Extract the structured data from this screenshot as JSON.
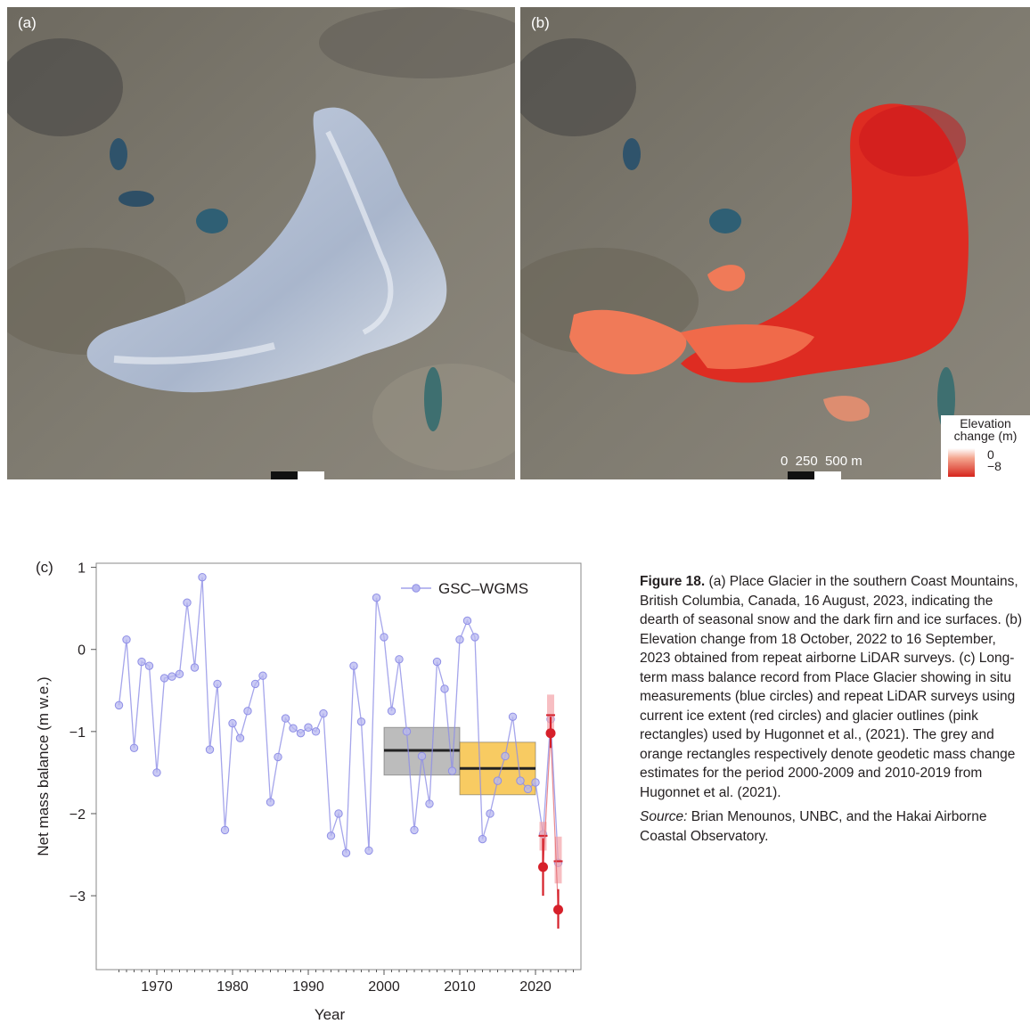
{
  "panels": {
    "a": {
      "label": "(a)"
    },
    "b": {
      "label": "(b)",
      "scale_text": "0  250  500 m",
      "legend_title_line1": "Elevation",
      "legend_title_line2": "change (m)",
      "legend_max": "0",
      "legend_min": "−8",
      "legend_colors": [
        "#ffffff",
        "#d6251d"
      ]
    }
  },
  "chart_data": {
    "type": "line",
    "panel_label": "(c)",
    "xlabel": "Year",
    "ylabel": "Net mass balance (m w.e.)",
    "xlim": [
      1962,
      2026
    ],
    "ylim": [
      -3.9,
      1.05
    ],
    "xticks": [
      1970,
      1980,
      1990,
      2000,
      2010,
      2020
    ],
    "yticks": [
      1,
      0,
      -1,
      -2,
      -3
    ],
    "ytick_labels": [
      "1",
      "0",
      "−1",
      "−2",
      "−3"
    ],
    "legend": {
      "label": "GSC–WGMS",
      "position": "top-right"
    },
    "series": [
      {
        "name": "GSC–WGMS",
        "color": "#8f8fe6",
        "x": [
          1965,
          1966,
          1967,
          1968,
          1969,
          1970,
          1971,
          1972,
          1973,
          1974,
          1975,
          1976,
          1977,
          1978,
          1979,
          1980,
          1981,
          1982,
          1983,
          1984,
          1985,
          1986,
          1987,
          1988,
          1989,
          1990,
          1991,
          1992,
          1993,
          1994,
          1995,
          1996,
          1997,
          1998,
          1999,
          2000,
          2001,
          2002,
          2003,
          2004,
          2005,
          2006,
          2007,
          2008,
          2009,
          2010,
          2011,
          2012,
          2013,
          2014,
          2015,
          2016,
          2017,
          2018,
          2019,
          2020,
          2021,
          2022,
          2023
        ],
        "y": [
          -0.68,
          0.12,
          -1.2,
          -0.15,
          -0.2,
          -1.5,
          -0.35,
          -0.33,
          -0.3,
          0.57,
          -0.22,
          0.88,
          -1.22,
          -0.42,
          -2.2,
          -0.9,
          -1.08,
          -0.75,
          -0.42,
          -0.32,
          -1.86,
          -1.31,
          -0.84,
          -0.96,
          -1.02,
          -0.95,
          -1.0,
          -0.78,
          -2.27,
          -2.0,
          -2.48,
          -0.2,
          -0.88,
          -2.45,
          0.63,
          0.15,
          -0.75,
          -0.12,
          -1.0,
          -2.2,
          -1.3,
          -1.88,
          -0.15,
          -0.48,
          -1.48,
          0.12,
          0.35,
          0.15,
          -2.31,
          -2.0,
          -1.6,
          -1.3,
          -0.82,
          -1.6,
          -1.7,
          -1.62,
          -2.25,
          -0.85,
          -2.6
        ]
      },
      {
        "name": "LiDAR",
        "color": "#d6202a",
        "points": [
          {
            "x": 2021,
            "y": -2.65,
            "lo": -3.0,
            "hi": -2.3
          },
          {
            "x": 2022,
            "y": -1.02,
            "lo": -1.2,
            "hi": -0.82
          },
          {
            "x": 2023,
            "y": -3.17,
            "lo": -3.4,
            "hi": -2.92
          }
        ]
      }
    ],
    "outline_points": [
      {
        "x": 2021,
        "y": -2.27,
        "lo": -2.45,
        "hi": -2.1
      },
      {
        "x": 2022,
        "y": -0.8,
        "lo": -1.0,
        "hi": -0.55
      },
      {
        "x": 2023,
        "y": -2.58,
        "lo": -2.85,
        "hi": -2.28
      }
    ],
    "geodetic_rectangles": [
      {
        "period": [
          2000,
          2009
        ],
        "mean": -1.23,
        "lo": -1.53,
        "hi": -0.95,
        "color": "#a6a6a6"
      },
      {
        "period": [
          2010,
          2019
        ],
        "mean": -1.45,
        "lo": -1.77,
        "hi": -1.13,
        "color": "#f6b92e"
      }
    ]
  },
  "caption": {
    "fig_label": "Figure 18.",
    "text": "(a) Place Glacier in the southern Coast Mountains, British Columbia, Canada, 16 August, 2023, indicating the dearth of seasonal snow and the dark firn and ice surfaces. (b) Elevation change from 18 October, 2022 to 16 September, 2023 obtained from repeat airborne LiDAR surveys. (c) Long-term mass balance record from Place Glacier showing in situ measurements (blue circles) and repeat LiDAR surveys using current ice extent (red circles) and glacier outlines (pink rectangles) used by Hugonnet et al., (2021). The grey and orange rectangles respectively denote geodetic mass change estimates for the period 2000-2009 and 2010-2019 from Hugonnet et al. (2021).",
    "source_label": "Source:",
    "source_text": "Brian Menounos, UNBC, and the Hakai Airborne Coastal Observatory."
  }
}
